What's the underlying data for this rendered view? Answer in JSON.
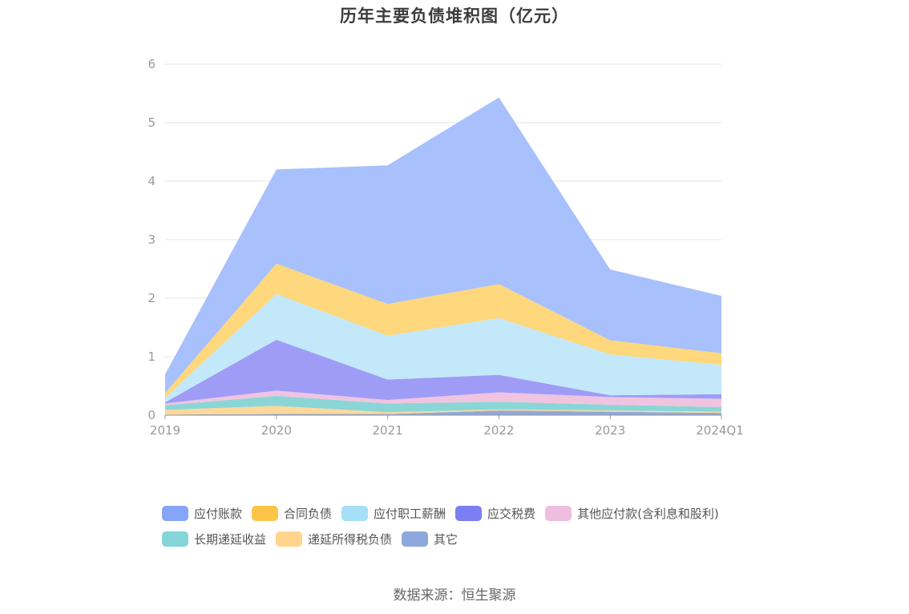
{
  "chart_data": {
    "type": "area",
    "stacked": true,
    "title": "历年主要负债堆积图（亿元）",
    "categories": [
      "2019",
      "2020",
      "2021",
      "2022",
      "2023",
      "2024Q1"
    ],
    "ylim": [
      0,
      6
    ],
    "yticks": [
      0,
      1,
      2,
      3,
      4,
      5,
      6
    ],
    "grid": true,
    "legend_position": "bottom",
    "series": [
      {
        "name": "其它",
        "color": "#8fa9d9",
        "values": [
          0.01,
          0.02,
          0.02,
          0.08,
          0.06,
          0.04
        ]
      },
      {
        "name": "递延所得税负债",
        "color": "#ffd89a",
        "values": [
          0.08,
          0.14,
          0.03,
          0.02,
          0.02,
          0.02
        ]
      },
      {
        "name": "长期递延收益",
        "color": "#8ad6d6",
        "values": [
          0.08,
          0.17,
          0.15,
          0.13,
          0.1,
          0.08
        ]
      },
      {
        "name": "其他应付款(含利息和股利)",
        "color": "#f0c4e0",
        "values": [
          0.03,
          0.09,
          0.06,
          0.16,
          0.13,
          0.14
        ]
      },
      {
        "name": "应交税费",
        "color": "#9f9cf6",
        "values": [
          0.02,
          0.87,
          0.35,
          0.3,
          0.03,
          0.08
        ]
      },
      {
        "name": "应付职工薪酬",
        "color": "#c2e8fa",
        "values": [
          0.08,
          0.78,
          0.75,
          0.97,
          0.7,
          0.5
        ]
      },
      {
        "name": "合同负债",
        "color": "#ffd77c",
        "values": [
          0.08,
          0.52,
          0.54,
          0.58,
          0.24,
          0.2
        ]
      },
      {
        "name": "应付账款",
        "color": "#a8c0fc",
        "values": [
          0.32,
          1.61,
          2.37,
          3.19,
          1.21,
          0.98
        ]
      }
    ]
  },
  "legend": [
    {
      "label": "应付账款",
      "color": "#86a5f8"
    },
    {
      "label": "合同负债",
      "color": "#fcc54a"
    },
    {
      "label": "应付职工薪酬",
      "color": "#a6dff8"
    },
    {
      "label": "应交税费",
      "color": "#7b7ef0"
    },
    {
      "label": "其他应付款(含利息和股利)",
      "color": "#eebede"
    },
    {
      "label": "长期递延收益",
      "color": "#84d4d8"
    },
    {
      "label": "递延所得税负债",
      "color": "#ffd58e"
    },
    {
      "label": "其它",
      "color": "#8ca8dc"
    }
  ],
  "source_text": "数据来源：恒生聚源"
}
